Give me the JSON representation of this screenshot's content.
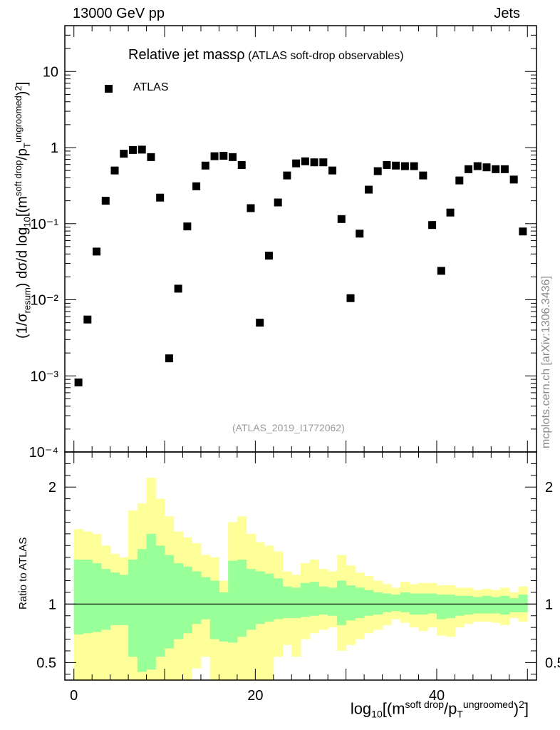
{
  "header": {
    "left": "13000 GeV pp",
    "right": "Jets",
    "side_credit": "mcplots.cern.ch [arXiv:1306.3436]"
  },
  "chart_data": [
    {
      "type": "scatter",
      "panel": "main",
      "title_main": "Relative jet massρ",
      "title_sub": " (ATLAS soft-drop observables)",
      "analysis_tag": "(ATLAS_2019_I1772062)",
      "legend": "ATLAS",
      "legend_placement": "top-left",
      "y_scale": "log",
      "ylim": [
        0.0001,
        40
      ],
      "xlim": [
        -1,
        51
      ],
      "y_ticks": [
        "10",
        "1",
        "10⁻¹",
        "10⁻²",
        "10⁻³",
        "10⁻⁴"
      ],
      "y_tick_values": [
        10,
        1,
        0.1,
        0.01,
        0.001,
        0.0001
      ],
      "ylabel": "(1/σresum) dσ/d log10[(m soft drop/pT ungroomed)2]",
      "series": [
        {
          "name": "ATLAS",
          "marker": "square",
          "color": "#000000",
          "x": [
            0.5,
            1.5,
            2.5,
            3.5,
            4.5,
            5.5,
            6.5,
            7.5,
            8.5,
            9.5,
            10.5,
            11.5,
            12.5,
            13.5,
            14.5,
            15.5,
            16.5,
            17.5,
            18.5,
            19.5,
            20.5,
            21.5,
            22.5,
            23.5,
            24.5,
            25.5,
            26.5,
            27.5,
            28.5,
            29.5,
            30.5,
            31.5,
            32.5,
            33.5,
            34.5,
            35.5,
            36.5,
            37.5,
            38.5,
            39.5,
            40.5,
            41.5,
            42.5,
            43.5,
            44.5,
            45.5,
            46.5,
            47.5,
            48.5,
            49.5
          ],
          "y": [
            0.00082,
            0.0055,
            0.043,
            0.2,
            0.5,
            0.83,
            0.93,
            0.94,
            0.75,
            0.22,
            0.0017,
            0.014,
            0.092,
            0.31,
            0.58,
            0.77,
            0.78,
            0.75,
            0.59,
            0.16,
            0.005,
            0.038,
            0.19,
            0.43,
            0.62,
            0.66,
            0.64,
            0.64,
            0.5,
            0.115,
            0.0105,
            0.074,
            0.28,
            0.49,
            0.59,
            0.58,
            0.57,
            0.57,
            0.43,
            0.096,
            0.024,
            0.14,
            0.37,
            0.52,
            0.57,
            0.55,
            0.52,
            0.52,
            0.38,
            0.079
          ]
        }
      ]
    },
    {
      "type": "area",
      "panel": "ratio",
      "ylabel": "Ratio to ATLAS",
      "xlabel": "log10[(m soft drop/pT ungroomed)2]",
      "ylim": [
        0.35,
        2.3
      ],
      "xlim": [
        -1,
        51
      ],
      "x_ticks": [
        0,
        20,
        40
      ],
      "y_ticks": [
        0.5,
        1,
        2
      ],
      "reference_line": 1,
      "bins": [
        0,
        1,
        2,
        3,
        4,
        5,
        6,
        7,
        8,
        9,
        10,
        11,
        12,
        13,
        14,
        15,
        16,
        17,
        18,
        19,
        20,
        21,
        22,
        23,
        24,
        25,
        26,
        27,
        28,
        29,
        30,
        31,
        32,
        33,
        34,
        35,
        36,
        37,
        38,
        39,
        40,
        41,
        42,
        43,
        44,
        45,
        46,
        47,
        48,
        49,
        50
      ],
      "bands": [
        {
          "name": "outer",
          "color": "#ffff99",
          "lo": [
            0.2,
            0.2,
            0.2,
            0.2,
            0.3,
            0.35,
            0.2,
            0.2,
            0.2,
            0.2,
            0.2,
            0.2,
            0.2,
            0.45,
            0.55,
            0.3,
            0.2,
            0.2,
            0.2,
            0.2,
            0.2,
            0.2,
            0.55,
            0.65,
            0.55,
            0.7,
            0.75,
            0.78,
            0.8,
            0.6,
            0.65,
            0.7,
            0.75,
            0.78,
            0.82,
            0.87,
            0.84,
            0.8,
            0.77,
            0.8,
            0.73,
            0.72,
            0.8,
            0.83,
            0.85,
            0.85,
            0.84,
            0.82,
            0.88,
            0.85
          ],
          "hi": [
            1.64,
            1.62,
            1.6,
            1.5,
            1.43,
            1.4,
            1.8,
            1.86,
            2.08,
            1.9,
            1.75,
            1.62,
            1.57,
            1.52,
            1.42,
            1.4,
            1.2,
            1.7,
            1.75,
            1.6,
            1.53,
            1.5,
            1.45,
            1.28,
            1.25,
            1.35,
            1.38,
            1.3,
            1.28,
            1.42,
            1.33,
            1.27,
            1.24,
            1.2,
            1.17,
            1.14,
            1.19,
            1.17,
            1.18,
            1.18,
            1.16,
            1.16,
            1.14,
            1.14,
            1.12,
            1.13,
            1.12,
            1.14,
            1.1,
            1.15
          ]
        },
        {
          "name": "inner",
          "color": "#99ff99",
          "lo": [
            0.74,
            0.75,
            0.76,
            0.78,
            0.82,
            0.82,
            0.55,
            0.42,
            0.44,
            0.55,
            0.62,
            0.7,
            0.75,
            0.83,
            0.87,
            0.7,
            0.68,
            0.67,
            0.72,
            0.78,
            0.83,
            0.85,
            0.87,
            0.88,
            0.88,
            0.89,
            0.9,
            0.91,
            0.9,
            0.82,
            0.86,
            0.88,
            0.9,
            0.91,
            0.93,
            0.94,
            0.93,
            0.91,
            0.91,
            0.92,
            0.87,
            0.88,
            0.9,
            0.91,
            0.92,
            0.92,
            0.92,
            0.91,
            0.93,
            0.93
          ],
          "hi": [
            1.38,
            1.38,
            1.35,
            1.3,
            1.27,
            1.25,
            1.38,
            1.47,
            1.6,
            1.5,
            1.42,
            1.35,
            1.32,
            1.28,
            1.23,
            1.2,
            1.1,
            1.37,
            1.38,
            1.3,
            1.28,
            1.26,
            1.22,
            1.15,
            1.14,
            1.18,
            1.19,
            1.15,
            1.14,
            1.2,
            1.16,
            1.14,
            1.12,
            1.1,
            1.09,
            1.08,
            1.1,
            1.09,
            1.09,
            1.09,
            1.08,
            1.08,
            1.07,
            1.07,
            1.06,
            1.07,
            1.06,
            1.07,
            1.05,
            1.08
          ]
        }
      ]
    }
  ]
}
